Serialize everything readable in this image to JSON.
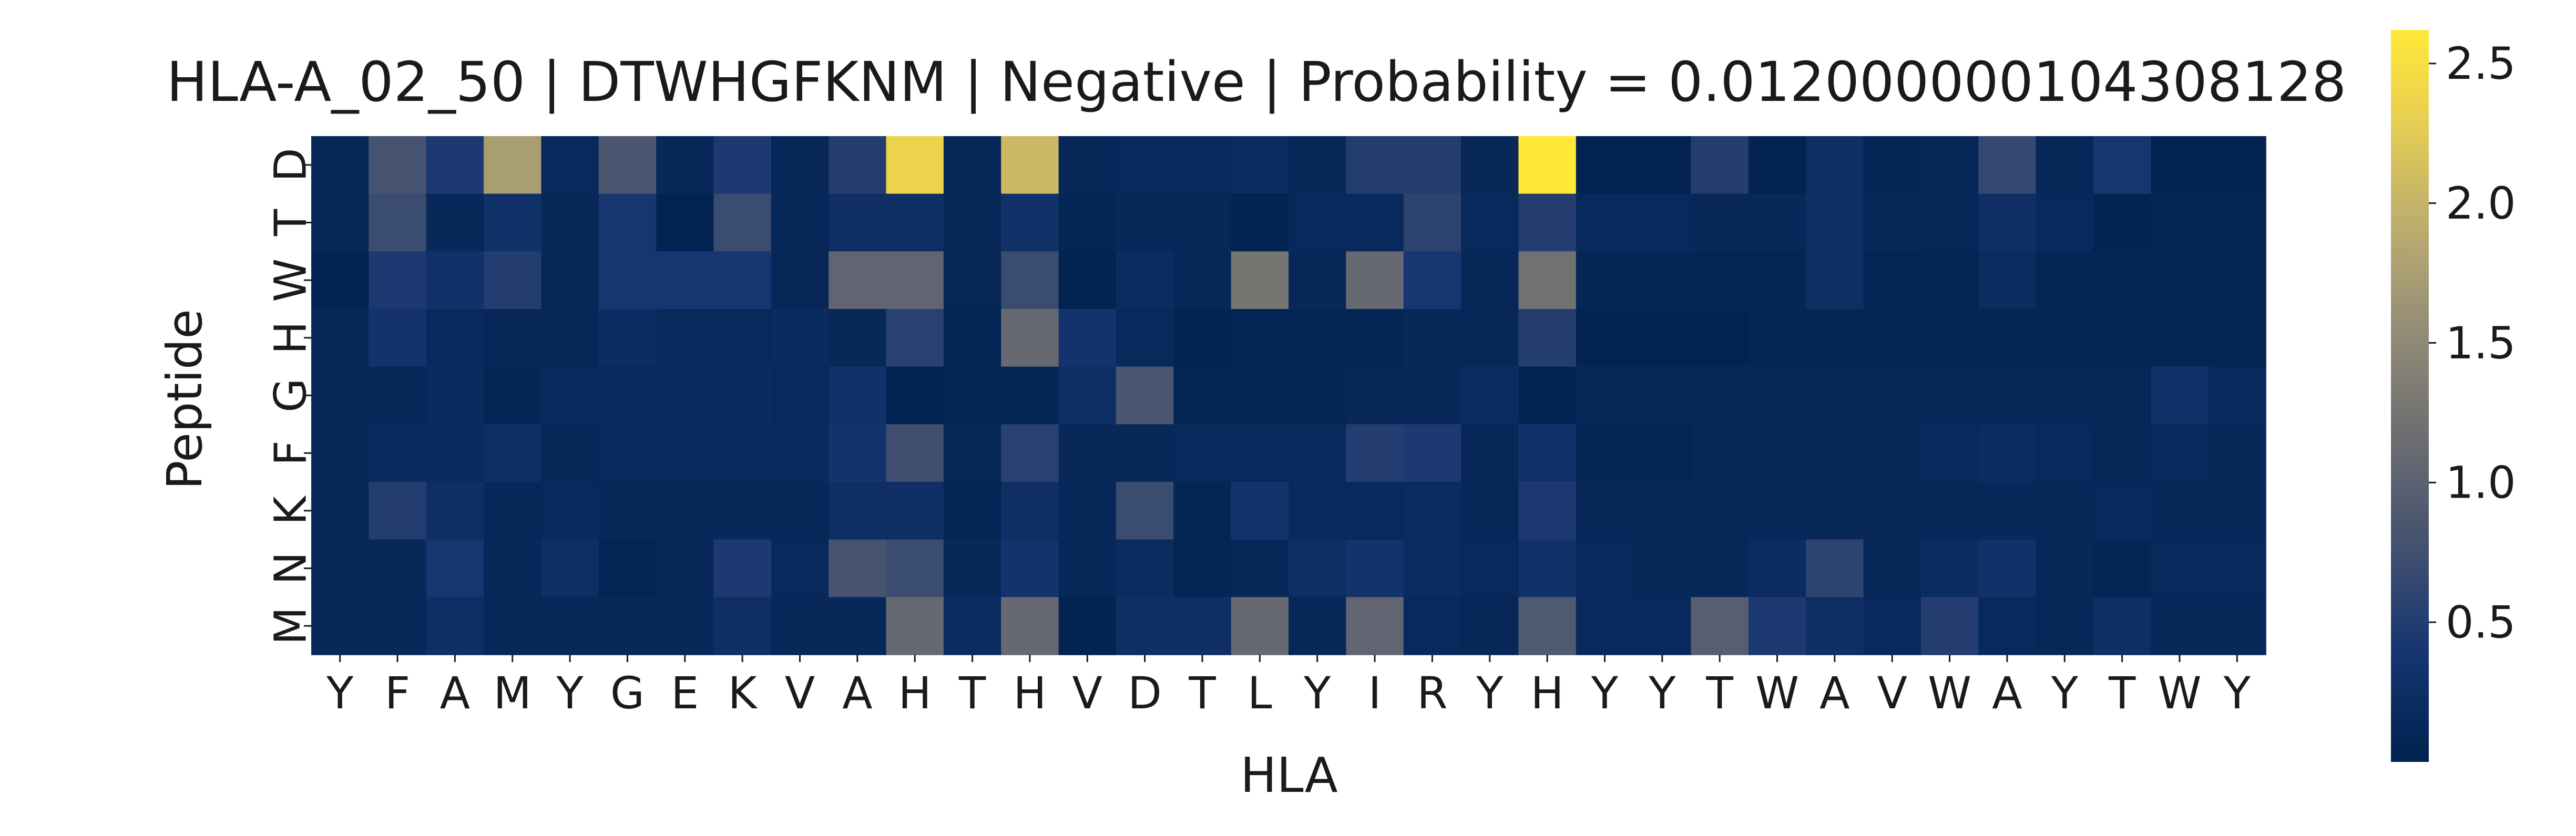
{
  "chart_data": {
    "type": "heatmap",
    "title": "HLA-A_02_50 | DTWHGFKNM | Negative | Probability = 0.012000000104308128",
    "xlabel": "HLA",
    "ylabel": "Peptide",
    "x_categories": [
      "Y",
      "F",
      "A",
      "M",
      "Y",
      "G",
      "E",
      "K",
      "V",
      "A",
      "H",
      "T",
      "H",
      "V",
      "D",
      "T",
      "L",
      "Y",
      "I",
      "R",
      "Y",
      "H",
      "Y",
      "Y",
      "T",
      "W",
      "A",
      "V",
      "W",
      "A",
      "Y",
      "T",
      "W",
      "Y"
    ],
    "y_categories": [
      "D",
      "T",
      "W",
      "H",
      "G",
      "F",
      "K",
      "N",
      "M"
    ],
    "colorbar": {
      "colormap": "cividis",
      "vmin": 0.0,
      "vmax": 2.62,
      "ticks": [
        0.5,
        1.0,
        1.5,
        2.0,
        2.5
      ],
      "tick_labels": [
        "0.5",
        "1.0",
        "1.5",
        "2.0",
        "2.5"
      ]
    },
    "values": [
      [
        0.12,
        0.8,
        0.45,
        1.75,
        0.15,
        0.85,
        0.12,
        0.45,
        0.1,
        0.5,
        2.35,
        0.12,
        2.05,
        0.12,
        0.15,
        0.15,
        0.2,
        0.12,
        0.5,
        0.5,
        0.12,
        2.62,
        0.05,
        0.05,
        0.5,
        0.05,
        0.25,
        0.08,
        0.1,
        0.65,
        0.1,
        0.4,
        0.05,
        0.05
      ],
      [
        0.1,
        0.7,
        0.12,
        0.3,
        0.12,
        0.4,
        0.05,
        0.7,
        0.1,
        0.25,
        0.25,
        0.1,
        0.3,
        0.08,
        0.12,
        0.1,
        0.05,
        0.15,
        0.15,
        0.6,
        0.15,
        0.5,
        0.15,
        0.15,
        0.12,
        0.12,
        0.25,
        0.12,
        0.1,
        0.25,
        0.15,
        0.05,
        0.08,
        0.08
      ],
      [
        0.05,
        0.45,
        0.3,
        0.5,
        0.1,
        0.4,
        0.4,
        0.4,
        0.1,
        1.05,
        1.05,
        0.1,
        0.7,
        0.05,
        0.2,
        0.1,
        1.25,
        0.12,
        1.1,
        0.4,
        0.1,
        1.2,
        0.08,
        0.08,
        0.08,
        0.08,
        0.25,
        0.08,
        0.08,
        0.2,
        0.08,
        0.08,
        0.08,
        0.08
      ],
      [
        0.12,
        0.35,
        0.15,
        0.1,
        0.1,
        0.22,
        0.15,
        0.15,
        0.18,
        0.12,
        0.55,
        0.08,
        1.1,
        0.35,
        0.15,
        0.05,
        0.08,
        0.08,
        0.08,
        0.12,
        0.1,
        0.5,
        0.05,
        0.05,
        0.05,
        0.08,
        0.08,
        0.08,
        0.08,
        0.08,
        0.08,
        0.08,
        0.08,
        0.08
      ],
      [
        0.12,
        0.12,
        0.18,
        0.08,
        0.15,
        0.15,
        0.15,
        0.18,
        0.15,
        0.3,
        0.05,
        0.08,
        0.08,
        0.25,
        0.85,
        0.08,
        0.08,
        0.08,
        0.1,
        0.12,
        0.2,
        0.05,
        0.12,
        0.12,
        0.12,
        0.12,
        0.12,
        0.1,
        0.1,
        0.1,
        0.1,
        0.1,
        0.3,
        0.15
      ],
      [
        0.12,
        0.18,
        0.18,
        0.25,
        0.12,
        0.15,
        0.15,
        0.15,
        0.15,
        0.35,
        0.75,
        0.1,
        0.55,
        0.12,
        0.12,
        0.15,
        0.15,
        0.15,
        0.5,
        0.45,
        0.1,
        0.3,
        0.08,
        0.08,
        0.1,
        0.12,
        0.12,
        0.12,
        0.15,
        0.2,
        0.15,
        0.1,
        0.15,
        0.12
      ],
      [
        0.12,
        0.5,
        0.25,
        0.1,
        0.15,
        0.12,
        0.12,
        0.12,
        0.1,
        0.25,
        0.25,
        0.08,
        0.25,
        0.12,
        0.7,
        0.08,
        0.35,
        0.15,
        0.15,
        0.2,
        0.1,
        0.45,
        0.1,
        0.1,
        0.1,
        0.12,
        0.12,
        0.12,
        0.12,
        0.12,
        0.1,
        0.15,
        0.12,
        0.12
      ],
      [
        0.12,
        0.12,
        0.4,
        0.12,
        0.25,
        0.08,
        0.12,
        0.45,
        0.15,
        0.8,
        0.7,
        0.12,
        0.35,
        0.1,
        0.2,
        0.08,
        0.12,
        0.25,
        0.35,
        0.2,
        0.15,
        0.3,
        0.15,
        0.12,
        0.1,
        0.2,
        0.6,
        0.12,
        0.2,
        0.3,
        0.12,
        0.08,
        0.15,
        0.15
      ],
      [
        0.12,
        0.12,
        0.25,
        0.1,
        0.1,
        0.12,
        0.12,
        0.25,
        0.12,
        0.12,
        1.1,
        0.2,
        1.1,
        0.05,
        0.25,
        0.25,
        1.1,
        0.1,
        1.05,
        0.15,
        0.1,
        0.9,
        0.15,
        0.15,
        0.95,
        0.45,
        0.25,
        0.15,
        0.5,
        0.15,
        0.1,
        0.25,
        0.12,
        0.12
      ]
    ]
  }
}
